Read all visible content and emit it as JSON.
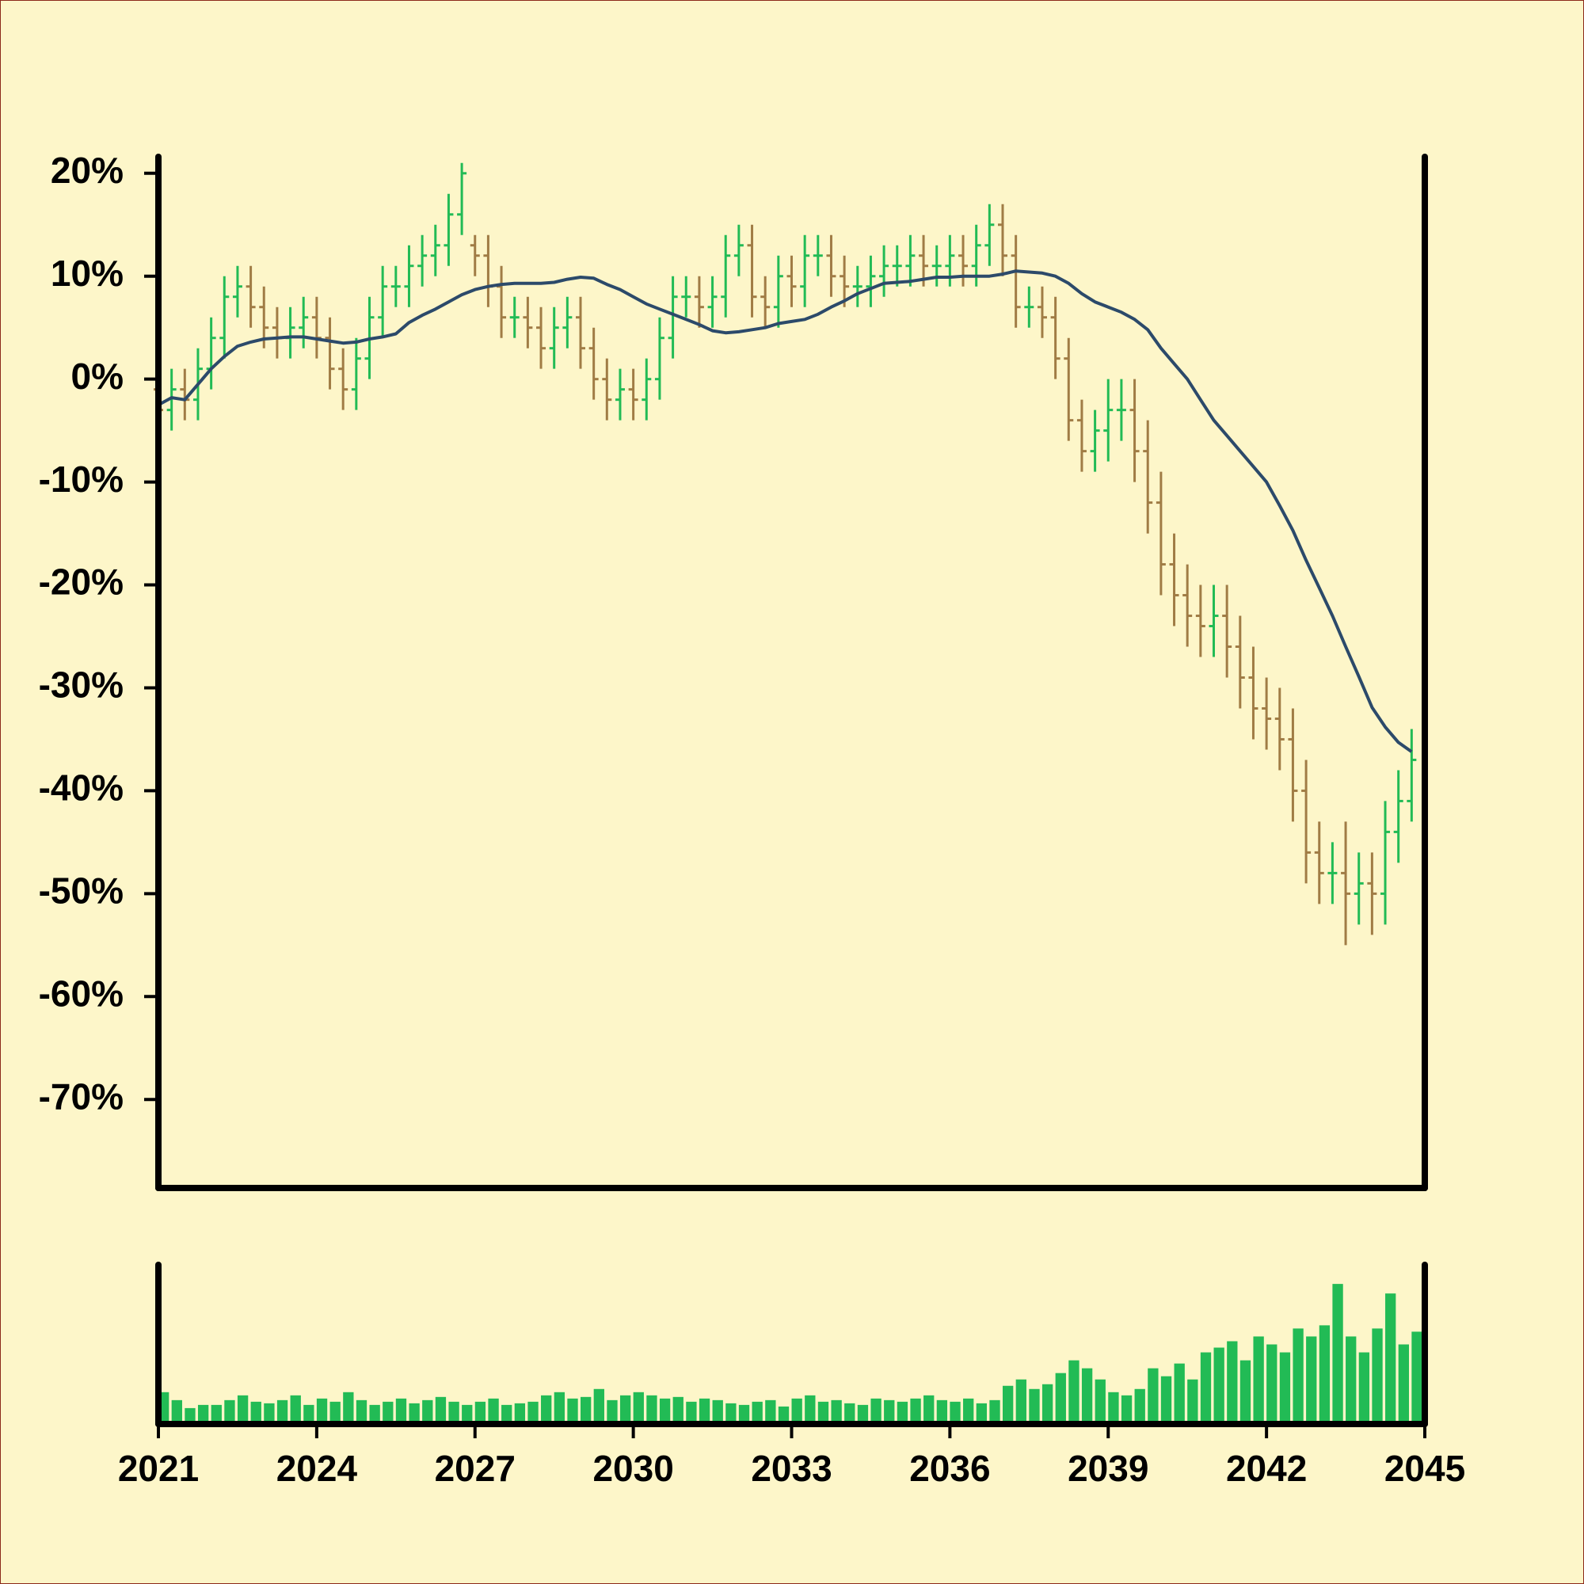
{
  "chart_data": [
    {
      "type": "ohlc",
      "x": [
        2021,
        2021.25,
        2021.5,
        2021.75,
        2022,
        2022.25,
        2022.5,
        2022.75,
        2023,
        2023.25,
        2023.5,
        2023.75,
        2024,
        2024.25,
        2024.5,
        2024.75,
        2025,
        2025.25,
        2025.5,
        2025.75,
        2026,
        2026.25,
        2026.5,
        2026.75,
        2027,
        2027.25,
        2027.5,
        2027.75,
        2028,
        2028.25,
        2028.5,
        2028.75,
        2029,
        2029.25,
        2029.5,
        2029.75,
        2030,
        2030.25,
        2030.5,
        2030.75,
        2031,
        2031.25,
        2031.5,
        2031.75,
        2032,
        2032.25,
        2032.5,
        2032.75,
        2033,
        2033.25,
        2033.5,
        2033.75,
        2034,
        2034.25,
        2034.5,
        2034.75,
        2035,
        2035.25,
        2035.5,
        2035.75,
        2036,
        2036.25,
        2036.5,
        2036.75,
        2037,
        2037.25,
        2037.5,
        2037.75,
        2038,
        2038.25,
        2038.5,
        2038.75,
        2039,
        2039.25,
        2039.5,
        2039.75,
        2040,
        2040.25,
        2040.5,
        2040.75,
        2041,
        2041.25,
        2041.5,
        2041.75,
        2042,
        2042.25,
        2042.5,
        2042.75,
        2043,
        2043.25,
        2043.5,
        2043.75,
        2044,
        2044.25,
        2044.5,
        2044.75
      ],
      "open": [
        -1,
        -3,
        -1,
        -2,
        1,
        4,
        8,
        9,
        7,
        5,
        4,
        5,
        6,
        4,
        1,
        -1,
        2,
        6,
        9,
        9,
        11,
        12,
        13,
        16,
        13,
        12,
        9,
        6,
        6,
        5,
        3,
        5,
        6,
        3,
        0,
        -2,
        -1,
        -2,
        0,
        4,
        8,
        8,
        7,
        8,
        12,
        13,
        8,
        7,
        10,
        9,
        12,
        12,
        10,
        9,
        9,
        10,
        11,
        11,
        12,
        11,
        11,
        12,
        11,
        13,
        15,
        12,
        7,
        7,
        6,
        2,
        -4,
        -7,
        -5,
        -3,
        -3,
        -7,
        -12,
        -18,
        -21,
        -23,
        -24,
        -23,
        -26,
        -29,
        -32,
        -33,
        -35,
        -40,
        -46,
        -48,
        -48,
        -50,
        -49,
        -50,
        -44,
        -41
      ],
      "high": [
        1,
        1,
        1,
        3,
        6,
        10,
        11,
        11,
        9,
        7,
        7,
        8,
        8,
        6,
        3,
        4,
        8,
        11,
        11,
        13,
        14,
        15,
        18,
        21,
        14,
        14,
        11,
        8,
        8,
        7,
        7,
        8,
        8,
        5,
        2,
        1,
        1,
        2,
        6,
        10,
        10,
        10,
        10,
        14,
        15,
        15,
        10,
        12,
        12,
        14,
        14,
        14,
        12,
        11,
        12,
        13,
        13,
        14,
        14,
        13,
        14,
        14,
        15,
        17,
        17,
        14,
        9,
        9,
        8,
        4,
        -2,
        -3,
        0,
        0,
        0,
        -4,
        -9,
        -15,
        -18,
        -20,
        -20,
        -20,
        -23,
        -26,
        -29,
        -30,
        -32,
        -37,
        -43,
        -45,
        -43,
        -46,
        -46,
        -41,
        -38,
        -34
      ],
      "low": [
        -5,
        -5,
        -4,
        -4,
        -1,
        2,
        6,
        5,
        3,
        2,
        2,
        3,
        2,
        -1,
        -3,
        -3,
        0,
        4,
        7,
        7,
        9,
        10,
        11,
        14,
        10,
        7,
        4,
        4,
        3,
        1,
        1,
        3,
        1,
        -2,
        -4,
        -4,
        -4,
        -4,
        -2,
        2,
        6,
        5,
        5,
        6,
        10,
        6,
        5,
        5,
        7,
        7,
        10,
        8,
        7,
        7,
        7,
        8,
        9,
        9,
        9,
        9,
        9,
        9,
        9,
        11,
        10,
        5,
        5,
        4,
        0,
        -6,
        -9,
        -9,
        -8,
        -6,
        -10,
        -15,
        -21,
        -24,
        -26,
        -27,
        -27,
        -29,
        -32,
        -35,
        -36,
        -38,
        -43,
        -49,
        -51,
        -51,
        -55,
        -53,
        -54,
        -53,
        -47,
        -43
      ],
      "close": [
        -3,
        -1,
        -2,
        1,
        4,
        8,
        9,
        7,
        5,
        4,
        5,
        6,
        4,
        1,
        -1,
        2,
        6,
        9,
        9,
        11,
        12,
        13,
        16,
        20,
        12,
        9,
        6,
        6,
        5,
        3,
        5,
        6,
        3,
        0,
        -2,
        -1,
        -2,
        0,
        4,
        8,
        8,
        7,
        8,
        12,
        13,
        8,
        7,
        10,
        9,
        12,
        12,
        10,
        9,
        9,
        10,
        11,
        11,
        12,
        11,
        11,
        12,
        11,
        13,
        15,
        12,
        7,
        7,
        6,
        2,
        -4,
        -7,
        -5,
        -3,
        -3,
        -7,
        -12,
        -18,
        -21,
        -23,
        -24,
        -23,
        -26,
        -29,
        -32,
        -33,
        -35,
        -40,
        -46,
        -48,
        -48,
        -50,
        -49,
        -50,
        -44,
        -41,
        -37
      ],
      "up_color": "#22bb55",
      "down_color": "#a07c45",
      "moving_average": {
        "color": "#2c4a6a",
        "values": [
          -2.5,
          -1.8,
          -2,
          -0.5,
          1,
          2.2,
          3.2,
          3.6,
          3.9,
          4,
          4.1,
          4.1,
          3.9,
          3.7,
          3.5,
          3.6,
          3.9,
          4.1,
          4.4,
          5.5,
          6.2,
          6.8,
          7.5,
          8.2,
          8.7,
          9,
          9.2,
          9.3,
          9.3,
          9.3,
          9.4,
          9.7,
          9.9,
          9.8,
          9.2,
          8.7,
          8,
          7.3,
          6.8,
          6.3,
          5.8,
          5.3,
          4.7,
          4.5,
          4.6,
          4.8,
          5,
          5.4,
          5.6,
          5.8,
          6.3,
          7,
          7.6,
          8.3,
          8.8,
          9.3,
          9.4,
          9.5,
          9.7,
          9.9,
          9.9,
          10,
          10,
          10,
          10.2,
          10.5,
          10.4,
          10.3,
          10,
          9.3,
          8.3,
          7.5,
          7,
          6.5,
          5.8,
          4.8,
          3,
          1.5,
          0,
          -2,
          -4,
          -5.5,
          -7,
          -8.5,
          -10,
          -12.3,
          -14.7,
          -17.6,
          -20.3,
          -23,
          -26,
          -28.9,
          -31.9,
          -33.8,
          -35.3,
          -36.2
        ]
      },
      "xlim": [
        2021,
        2045
      ],
      "ylim": [
        -78.6,
        21.6
      ],
      "yticks": [
        {
          "value": 20,
          "label": "20%"
        },
        {
          "value": 10,
          "label": "10%"
        },
        {
          "value": 0,
          "label": "0%"
        },
        {
          "value": -10,
          "label": "-10%"
        },
        {
          "value": -20,
          "label": "-20%"
        },
        {
          "value": -30,
          "label": "-30%"
        },
        {
          "value": -40,
          "label": "-40%"
        },
        {
          "value": -50,
          "label": "-50%"
        },
        {
          "value": -60,
          "label": "-60%"
        },
        {
          "value": -70,
          "label": "-70%"
        }
      ]
    },
    {
      "type": "bar",
      "x": [
        2021,
        2021.25,
        2021.5,
        2021.75,
        2022,
        2022.25,
        2022.5,
        2022.75,
        2023,
        2023.25,
        2023.5,
        2023.75,
        2024,
        2024.25,
        2024.5,
        2024.75,
        2025,
        2025.25,
        2025.5,
        2025.75,
        2026,
        2026.25,
        2026.5,
        2026.75,
        2027,
        2027.25,
        2027.5,
        2027.75,
        2028,
        2028.25,
        2028.5,
        2028.75,
        2029,
        2029.25,
        2029.5,
        2029.75,
        2030,
        2030.25,
        2030.5,
        2030.75,
        2031,
        2031.25,
        2031.5,
        2031.75,
        2032,
        2032.25,
        2032.5,
        2032.75,
        2033,
        2033.25,
        2033.5,
        2033.75,
        2034,
        2034.25,
        2034.5,
        2034.75,
        2035,
        2035.25,
        2035.5,
        2035.75,
        2036,
        2036.25,
        2036.5,
        2036.75,
        2037,
        2037.25,
        2037.5,
        2037.75,
        2038,
        2038.25,
        2038.5,
        2038.75,
        2039,
        2039.25,
        2039.5,
        2039.75,
        2040,
        2040.25,
        2040.5,
        2040.75,
        2041,
        2041.25,
        2041.5,
        2041.75,
        2042,
        2042.25,
        2042.5,
        2042.75,
        2043,
        2043.25,
        2043.5,
        2043.75,
        2044,
        2044.25,
        2044.5,
        2044.75
      ],
      "values": [
        20,
        15,
        10,
        12,
        12,
        15,
        18,
        14,
        13,
        15,
        18,
        12,
        16,
        14,
        20,
        15,
        12,
        14,
        16,
        13,
        15,
        17,
        14,
        12,
        14,
        16,
        12,
        13,
        14,
        18,
        20,
        16,
        17,
        22,
        15,
        18,
        20,
        18,
        16,
        17,
        14,
        16,
        15,
        13,
        12,
        14,
        15,
        11,
        16,
        18,
        14,
        15,
        13,
        12,
        16,
        15,
        14,
        16,
        18,
        15,
        14,
        16,
        13,
        15,
        24,
        28,
        22,
        25,
        32,
        40,
        35,
        28,
        20,
        18,
        22,
        35,
        30,
        38,
        28,
        45,
        48,
        52,
        40,
        55,
        50,
        45,
        60,
        55,
        62,
        88,
        55,
        45,
        60,
        82,
        50,
        58
      ],
      "color": "#22bb55",
      "xlim": [
        2021,
        2045
      ],
      "ylim": [
        0,
        100
      ],
      "xticks": [
        2021,
        2024,
        2027,
        2030,
        2033,
        2036,
        2039,
        2042,
        2045
      ]
    }
  ]
}
